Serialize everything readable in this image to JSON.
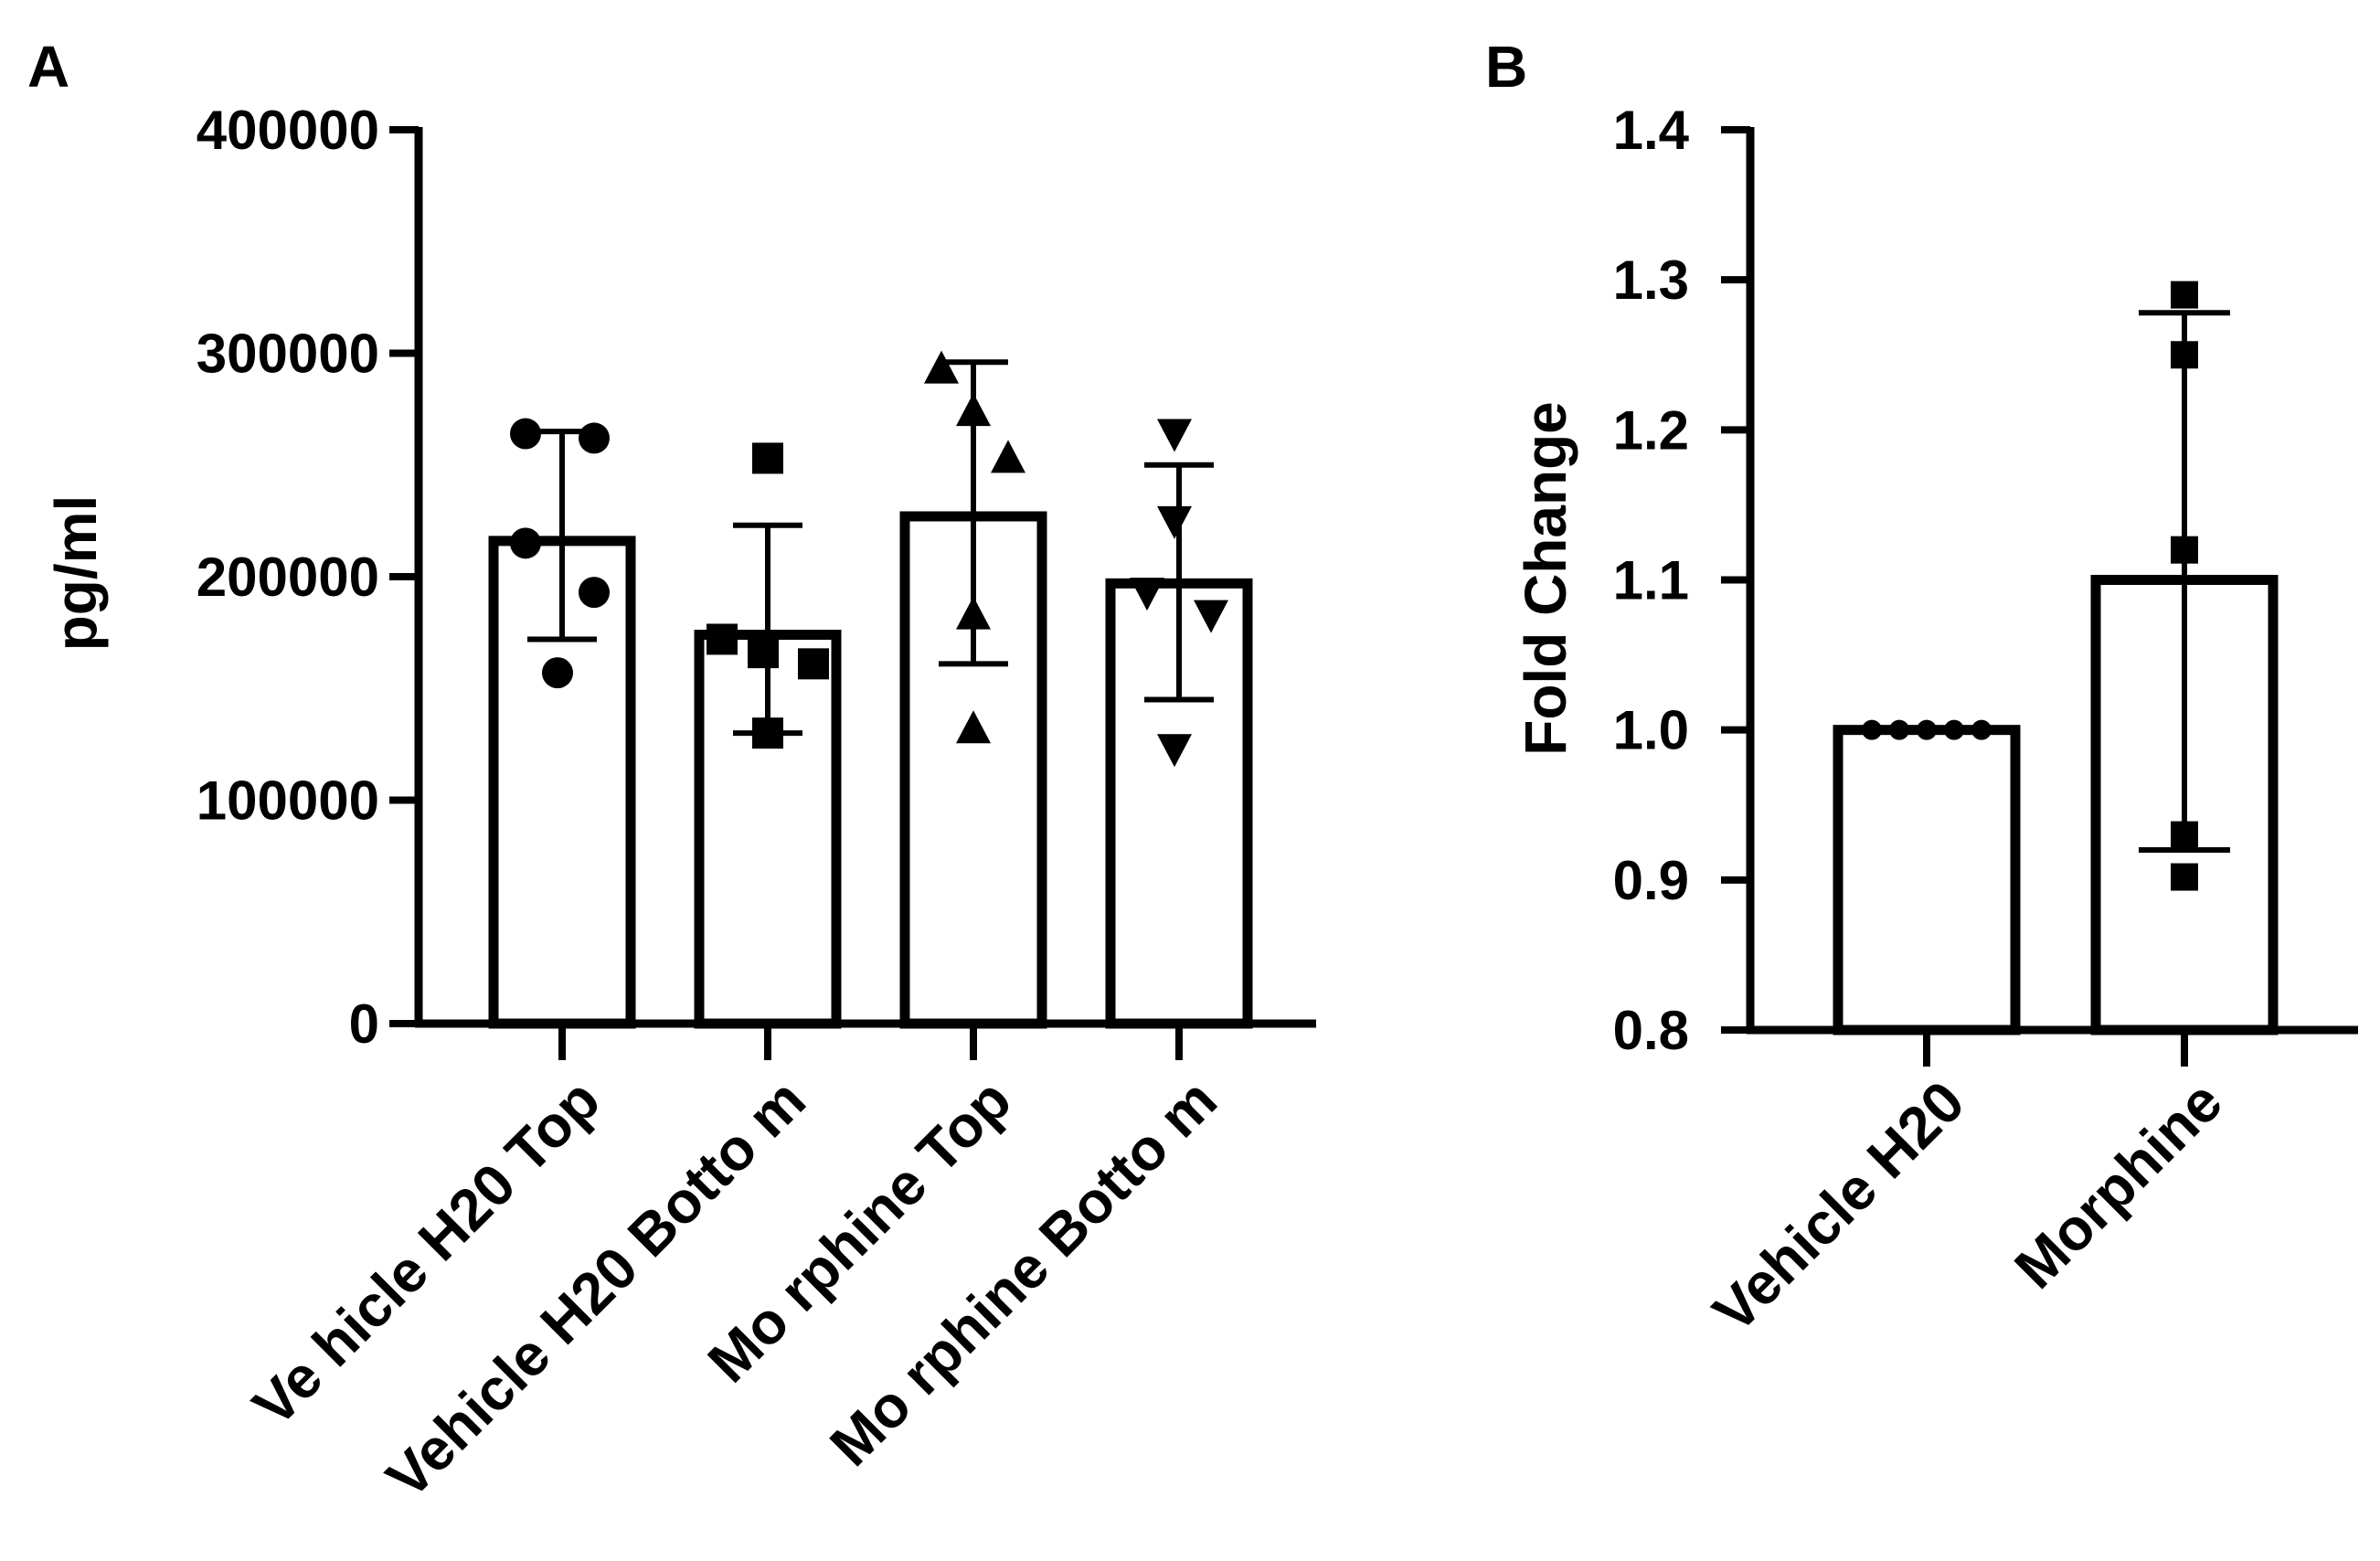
{
  "chart_data": [
    {
      "panel": "A",
      "type": "bar",
      "ylabel": "pg/ml",
      "ylim": [
        0,
        400000
      ],
      "yticks": [
        0,
        100000,
        200000,
        300000,
        400000
      ],
      "ytick_labels": [
        "0",
        "100000",
        "200000",
        "300000",
        "400000"
      ],
      "categories": [
        "Ve hicle H20 Top",
        "Vehicle H20 Botto m",
        "Mo rphine Top",
        "Mo rphine Botto m"
      ],
      "means": [
        216000,
        174000,
        227000,
        197000
      ],
      "error_low": [
        172000,
        130000,
        161000,
        145000
      ],
      "error_high": [
        265000,
        223000,
        296000,
        250000
      ],
      "marker": [
        "circle",
        "square",
        "triangle-up",
        "triangle-down"
      ],
      "points": [
        [
          264000,
          262000,
          215000,
          193000,
          157000
        ],
        [
          253000,
          172000,
          166000,
          161000,
          130000
        ],
        [
          293000,
          274000,
          253000,
          183000,
          132000
        ],
        [
          264000,
          225000,
          193000,
          183000,
          123000
        ]
      ]
    },
    {
      "panel": "B",
      "type": "bar",
      "ylabel": "Fold Change",
      "ylim": [
        0.8,
        1.4
      ],
      "yticks": [
        0.8,
        0.9,
        1.0,
        1.1,
        1.2,
        1.3,
        1.4
      ],
      "ytick_labels": [
        "0.8",
        "0.9",
        "1.0",
        "1.1",
        "1.2",
        "1.3",
        "1.4"
      ],
      "categories": [
        "Vehicle H20",
        "Morphine"
      ],
      "means": [
        1.0,
        1.1
      ],
      "error_low": [
        1.0,
        0.92
      ],
      "error_high": [
        1.0,
        1.278
      ],
      "marker": [
        "circle",
        "square"
      ],
      "points": [
        [
          1.0,
          1.0,
          1.0,
          1.0,
          1.0
        ],
        [
          1.29,
          1.25,
          1.12,
          0.93,
          0.902
        ]
      ]
    }
  ]
}
